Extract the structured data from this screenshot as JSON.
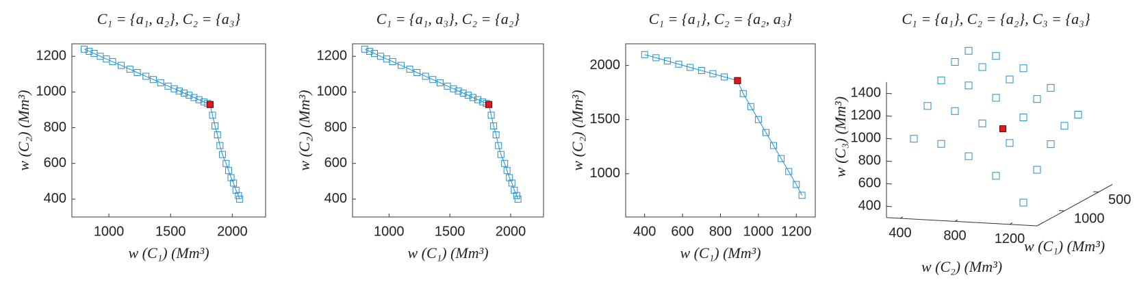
{
  "chart_data": [
    {
      "type": "line",
      "title": "C₁ = {a₁, a₂},  C₂ = {a₃}",
      "xlabel": "w (C₁) (Mm³)",
      "ylabel": "w (C₂) (Mm³)",
      "x": [
        800,
        840,
        880,
        930,
        980,
        1030,
        1100,
        1170,
        1230,
        1300,
        1360,
        1420,
        1480,
        1530,
        1570,
        1610,
        1650,
        1690,
        1730,
        1770,
        1800,
        1820,
        1840,
        1860,
        1880,
        1900,
        1920,
        1950,
        1970,
        1990,
        2010,
        2030,
        2050,
        2060
      ],
      "values": [
        1240,
        1228,
        1216,
        1200,
        1185,
        1170,
        1149,
        1128,
        1109,
        1088,
        1070,
        1052,
        1033,
        1018,
        1006,
        994,
        982,
        969,
        957,
        945,
        936,
        930,
        870,
        810,
        760,
        700,
        650,
        600,
        560,
        520,
        490,
        450,
        420,
        400
      ],
      "color": "#1f8dd6",
      "marker": "square",
      "highlight": {
        "x": 1820,
        "y": 930,
        "color": "#e8141b"
      },
      "xlim": [
        700,
        2270
      ],
      "xticks": [
        1000,
        1500,
        2000
      ],
      "ylim": [
        300,
        1270
      ],
      "yticks": [
        400,
        600,
        800,
        1000,
        1200
      ]
    },
    {
      "type": "line",
      "title": "C₁ = {a₁, a₃},  C₂ = {a₂}",
      "xlabel": "w (C₁) (Mm³)",
      "ylabel": "w (C₂) (Mm³)",
      "x": [
        800,
        840,
        880,
        930,
        980,
        1030,
        1100,
        1170,
        1230,
        1300,
        1360,
        1420,
        1480,
        1530,
        1570,
        1610,
        1650,
        1690,
        1730,
        1770,
        1800,
        1820,
        1840,
        1860,
        1880,
        1900,
        1920,
        1950,
        1970,
        1990,
        2010,
        2030,
        2050,
        2060
      ],
      "values": [
        1240,
        1228,
        1216,
        1200,
        1185,
        1170,
        1149,
        1128,
        1109,
        1088,
        1070,
        1052,
        1033,
        1018,
        1006,
        994,
        982,
        969,
        957,
        945,
        936,
        930,
        870,
        810,
        760,
        700,
        650,
        600,
        560,
        520,
        490,
        450,
        420,
        400
      ],
      "color": "#1f8dd6",
      "marker": "square",
      "highlight": {
        "x": 1820,
        "y": 930,
        "color": "#e8141b"
      },
      "xlim": [
        700,
        2270
      ],
      "xticks": [
        1000,
        1500,
        2000
      ],
      "ylim": [
        300,
        1270
      ],
      "yticks": [
        400,
        600,
        800,
        1000,
        1200
      ]
    },
    {
      "type": "line",
      "title": "C₁ = {a₁},  C₂ = {a₂, a₃}",
      "xlabel": "w (C₁) (Mm³)",
      "ylabel": "w (C₂) (Mm³)",
      "x": [
        400,
        460,
        520,
        580,
        640,
        700,
        760,
        820,
        890,
        920,
        960,
        1000,
        1040,
        1080,
        1120,
        1160,
        1200,
        1230
      ],
      "values": [
        2100,
        2071,
        2041,
        2012,
        1982,
        1953,
        1924,
        1894,
        1860,
        1740,
        1620,
        1500,
        1380,
        1260,
        1140,
        1020,
        900,
        800
      ],
      "color": "#1f8dd6",
      "marker": "square",
      "highlight": {
        "x": 890,
        "y": 1860,
        "color": "#e8141b"
      },
      "xlim": [
        300,
        1300
      ],
      "xticks": [
        400,
        600,
        800,
        1000,
        1200
      ],
      "ylim": [
        600,
        2200
      ],
      "yticks": [
        1000,
        1500,
        2000
      ]
    },
    {
      "type": "scatter3d",
      "title": "C₁ = {a₁}, C₂ = {a₂}, C₃ = {a₃}",
      "xlabel": "w (C₁) (Mm³)",
      "ylabel": "w (C₂) (Mm³)",
      "zlabel": "w (C₃) (Mm³)",
      "x": [
        400,
        400,
        400,
        400,
        400,
        600,
        600,
        600,
        600,
        600,
        800,
        800,
        800,
        800,
        800,
        1000,
        1000,
        1000,
        1000,
        1000,
        1200,
        1200,
        1200,
        1200,
        1200
      ],
      "y": [
        400,
        600,
        800,
        1000,
        1200,
        400,
        600,
        800,
        1000,
        1200,
        400,
        600,
        800,
        1000,
        1200,
        400,
        600,
        800,
        1000,
        1200,
        400,
        600,
        800,
        1000,
        1200
      ],
      "z": [
        1450,
        1418,
        1322,
        1162,
        938,
        1418,
        1386,
        1290,
        1130,
        906,
        1322,
        1290,
        1194,
        1034,
        810,
        1162,
        1130,
        1034,
        874,
        650,
        938,
        906,
        810,
        650,
        426
      ],
      "color": "#1f8dd6",
      "marker": "square",
      "highlight": {
        "x": 900,
        "y": 900,
        "z": 960,
        "color": "#e8141b"
      },
      "xlim": [
        300,
        1400
      ],
      "xticks": [
        500,
        1000
      ],
      "ylim": [
        300,
        1400
      ],
      "yticks": [
        400,
        800,
        1200
      ],
      "zlim": [
        300,
        1500
      ],
      "zticks": [
        400,
        600,
        800,
        1000,
        1200,
        1400
      ]
    }
  ]
}
